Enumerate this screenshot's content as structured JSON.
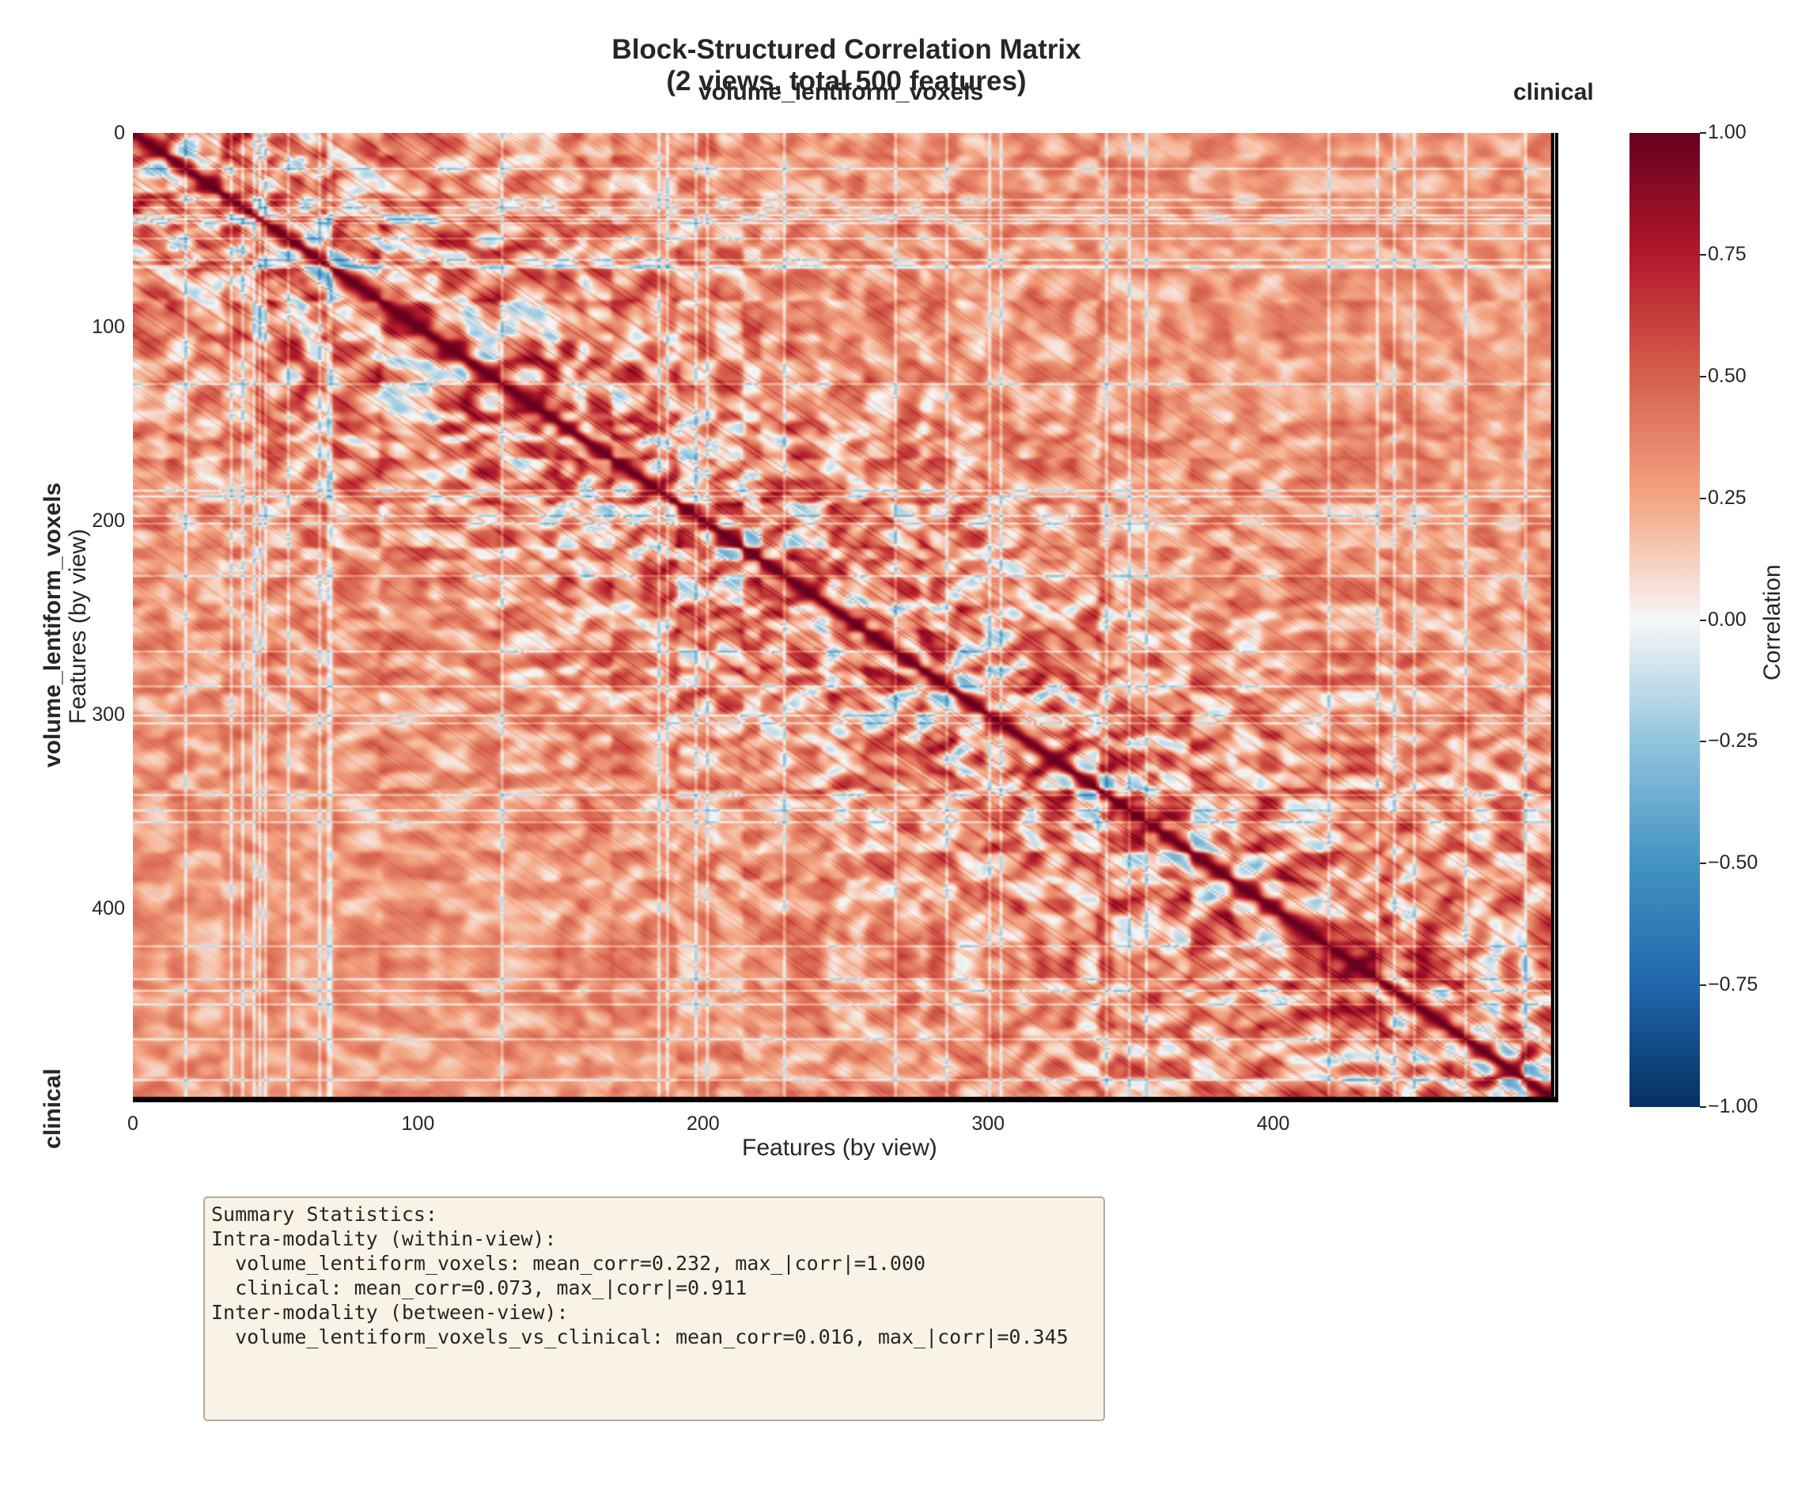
{
  "chart_data": {
    "type": "heatmap",
    "title": "Block-Structured Correlation Matrix",
    "subtitle": "(2 views, total 500 features)",
    "xlabel": "Features (by view)",
    "ylabel": "Features (by view)",
    "n_features": 500,
    "xlim": [
      0,
      500
    ],
    "ylim": [
      500,
      0
    ],
    "x_ticks": [
      "0",
      "100",
      "200",
      "300",
      "400"
    ],
    "y_ticks": [
      "0",
      "100",
      "200",
      "300",
      "400"
    ],
    "views": [
      {
        "name": "volume_lentiform_voxels",
        "start": 0,
        "end": 498
      },
      {
        "name": "clinical",
        "start": 498,
        "end": 500
      }
    ],
    "diagonal_value": 1.0,
    "colormap": "RdBu_r",
    "colorbar": {
      "label": "Correlation",
      "vmin": -1.0,
      "vmax": 1.0,
      "ticks": [
        "1.00",
        "0.75",
        "0.50",
        "0.25",
        "0.00",
        "−0.25",
        "−0.50",
        "−0.75",
        "−1.00"
      ],
      "tick_values": [
        1.0,
        0.75,
        0.5,
        0.25,
        0.0,
        -0.25,
        -0.5,
        -0.75,
        -1.0
      ]
    },
    "summary": {
      "intra": [
        {
          "view": "volume_lentiform_voxels",
          "mean_corr": 0.232,
          "max_abs_corr": 1.0
        },
        {
          "view": "clinical",
          "mean_corr": 0.073,
          "max_abs_corr": 0.911
        }
      ],
      "inter": [
        {
          "pair": "volume_lentiform_voxels_vs_clinical",
          "mean_corr": 0.016,
          "max_abs_corr": 0.345
        }
      ]
    },
    "grid": false
  },
  "stats_box": {
    "lines": [
      "Summary Statistics:",
      "",
      "Intra-modality (within-view):",
      "  volume_lentiform_voxels: mean_corr=0.232, max_|corr|=1.000",
      "  clinical: mean_corr=0.073, max_|corr|=0.911",
      "",
      "Inter-modality (between-view):",
      "  volume_lentiform_voxels_vs_clinical: mean_corr=0.016, max_|corr|=0.345"
    ]
  },
  "colors": {
    "strong_positive": "#67001f",
    "neutral": "#f7f7f7",
    "strong_negative": "#053061",
    "stats_background": "#f8f3e6"
  }
}
